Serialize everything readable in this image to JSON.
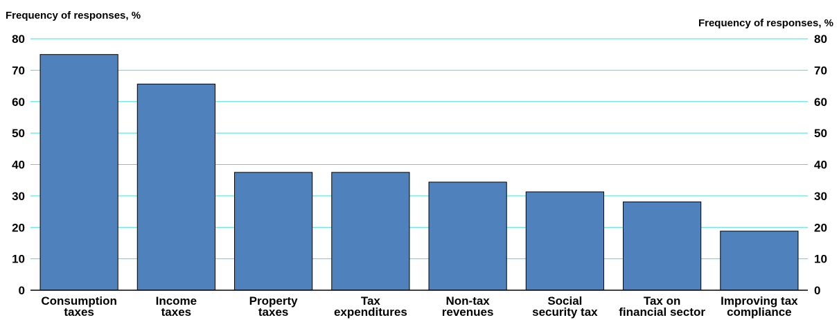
{
  "chart_data": {
    "type": "bar",
    "left_axis_title": "Frequency of responses, %",
    "right_axis_title": "Frequency of responses, %",
    "ylim": [
      0,
      80
    ],
    "yticks": [
      0,
      10,
      20,
      30,
      40,
      50,
      60,
      70,
      80
    ],
    "grid": true,
    "categories": [
      [
        "Consumption",
        "taxes"
      ],
      [
        "Income",
        "taxes"
      ],
      [
        "Property",
        "taxes"
      ],
      [
        "Tax",
        "expenditures"
      ],
      [
        "Non-tax",
        "revenues"
      ],
      [
        "Social",
        "security tax"
      ],
      [
        "Tax on",
        "financial sector"
      ],
      [
        "Improving tax",
        "compliance"
      ]
    ],
    "values": [
      75,
      65.6,
      37.5,
      37.5,
      34.4,
      31.3,
      28.1,
      18.8
    ],
    "colors": {
      "bar": "#4f81bd",
      "bar_border": "#000000",
      "grid": "#3ee0e0",
      "axis": "#000000"
    }
  }
}
